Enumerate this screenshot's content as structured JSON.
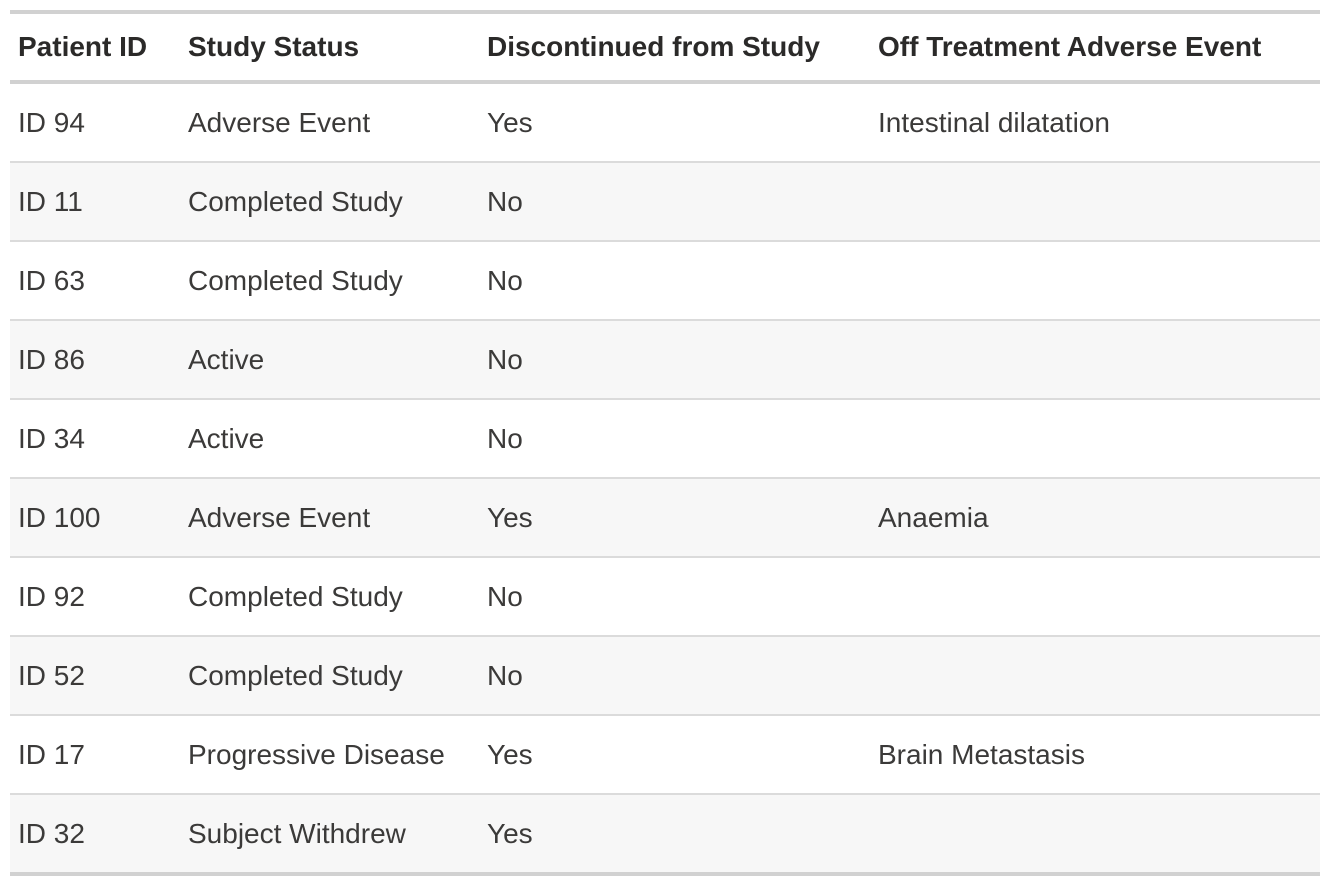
{
  "table": {
    "columns": [
      {
        "label": "Patient ID"
      },
      {
        "label": "Study Status"
      },
      {
        "label": "Discontinued from Study"
      },
      {
        "label": "Off Treatment Adverse Event"
      }
    ],
    "rows": [
      {
        "cells": [
          "ID 94",
          "Adverse Event",
          "Yes",
          "Intestinal dilatation"
        ]
      },
      {
        "cells": [
          "ID 11",
          "Completed Study",
          "No",
          ""
        ]
      },
      {
        "cells": [
          "ID 63",
          "Completed Study",
          "No",
          ""
        ]
      },
      {
        "cells": [
          "ID 86",
          "Active",
          "No",
          ""
        ]
      },
      {
        "cells": [
          "ID 34",
          "Active",
          "No",
          ""
        ]
      },
      {
        "cells": [
          "ID 100",
          "Adverse Event",
          "Yes",
          "Anaemia"
        ]
      },
      {
        "cells": [
          "ID 92",
          "Completed Study",
          "No",
          ""
        ]
      },
      {
        "cells": [
          "ID 52",
          "Completed Study",
          "No",
          ""
        ]
      },
      {
        "cells": [
          "ID 17",
          "Progressive Disease",
          "Yes",
          "Brain Metastasis"
        ]
      },
      {
        "cells": [
          "ID 32",
          "Subject Withdrew",
          "Yes",
          ""
        ]
      }
    ],
    "colors": {
      "header_text": "#2b2a29",
      "cell_text": "#3b3a39",
      "row_stripe": "#f7f7f7",
      "header_border": "#d1d1d1",
      "row_separator": "#dbdbdb"
    }
  }
}
